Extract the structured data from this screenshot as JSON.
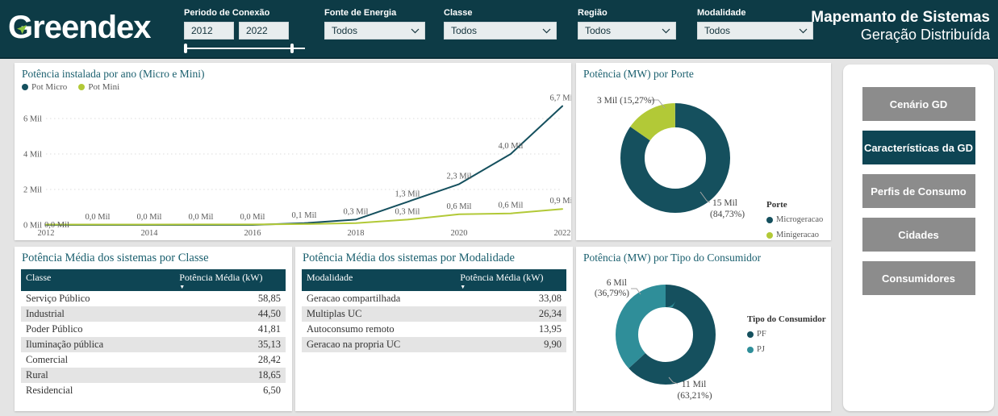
{
  "header": {
    "logo": "Greendex",
    "title_line1": "Mapemanto de Sistemas",
    "title_line2": "Geração Distribuída",
    "filters": {
      "periodo": {
        "label": "Periodo de Conexão",
        "from": "2012",
        "to": "2022"
      },
      "dropdowns": [
        {
          "label": "Fonte de Energia",
          "value": "Todos"
        },
        {
          "label": "Classe",
          "value": "Todos"
        },
        {
          "label": "Região",
          "value": "Todos"
        },
        {
          "label": "Modalidade",
          "value": "Todos"
        }
      ]
    }
  },
  "sidebar": {
    "buttons": [
      {
        "label": "Cenário GD",
        "active": false
      },
      {
        "label": "Características da GD",
        "active": true
      },
      {
        "label": "Perfis de Consumo",
        "active": false
      },
      {
        "label": "Cidades",
        "active": false
      },
      {
        "label": "Consumidores",
        "active": false
      }
    ]
  },
  "colors": {
    "brand_dark_teal": "#0d3b46",
    "brand_green": "#8bc53f",
    "series_dark": "#15505e",
    "series_green": "#b2c937",
    "series_teal": "#2f8e99"
  },
  "chart_data": [
    {
      "type": "line",
      "title": "Potência instalada por ano (Micro e Mini)",
      "x": [
        2012,
        2013,
        2014,
        2015,
        2016,
        2017,
        2018,
        2019,
        2020,
        2021,
        2022
      ],
      "x_ticks": [
        2012,
        2014,
        2016,
        2018,
        2020,
        2022
      ],
      "y_ticks": [
        {
          "label": "0 Mil",
          "value": 0
        },
        {
          "label": "2 Mil",
          "value": 2
        },
        {
          "label": "4 Mil",
          "value": 4
        },
        {
          "label": "6 Mil",
          "value": 6
        }
      ],
      "ylim": [
        0,
        7
      ],
      "grid": true,
      "legend_position": "top-left",
      "series": [
        {
          "name": "Pot Micro",
          "color": "#15505e",
          "values": [
            0.0,
            0.0,
            0.0,
            0.0,
            0.0,
            0.1,
            0.3,
            1.3,
            2.3,
            4.0,
            6.7
          ],
          "labels": [
            "0,0 Mil",
            "0,0 Mil",
            "0,0 Mil",
            "0,0 Mil",
            "0,0 Mil",
            "0,1 Mil",
            "0,3 Mil",
            "1,3 Mil",
            "2,3 Mil",
            "4,0 Mil",
            "6,7 Mil"
          ]
        },
        {
          "name": "Pot Mini",
          "color": "#b2c937",
          "values": [
            0.02,
            0.02,
            0.02,
            0.03,
            0.03,
            0.05,
            0.1,
            0.3,
            0.6,
            0.65,
            0.9
          ],
          "labels": [
            null,
            null,
            null,
            null,
            null,
            null,
            null,
            "0,3 Mil",
            "0,6 Mil",
            "0,6 Mil",
            "0,9 Mil"
          ]
        }
      ]
    },
    {
      "type": "pie",
      "title": "Potência (MW) por Porte",
      "legend_title": "Porte",
      "slices": [
        {
          "name": "Microgeracao",
          "value_label": "15 Mil",
          "pct": 84.73,
          "pct_label": "(84,73%)",
          "color": "#15505e"
        },
        {
          "name": "Minigeracao",
          "value_label": "3 Mil",
          "pct": 15.27,
          "pct_label": "(15,27%)",
          "color": "#b2c937"
        }
      ]
    },
    {
      "type": "pie",
      "title": "Potência (MW) por Tipo do Consumidor",
      "legend_title": "Tipo do Consumidor",
      "slices": [
        {
          "name": "PF",
          "value_label": "11 Mil",
          "pct": 63.21,
          "pct_label": "(63,21%)",
          "color": "#15505e"
        },
        {
          "name": "PJ",
          "value_label": "6 Mil",
          "pct": 36.79,
          "pct_label": "(36,79%)",
          "color": "#2f8e99"
        }
      ]
    }
  ],
  "tables": [
    {
      "title": "Potência Média dos sistemas por Classe",
      "columns": [
        "Classe",
        "Potência Média (kW)"
      ],
      "rows": [
        [
          "Serviço Público",
          "58,85"
        ],
        [
          "Industrial",
          "44,50"
        ],
        [
          "Poder Público",
          "41,81"
        ],
        [
          "Iluminação pública",
          "35,13"
        ],
        [
          "Comercial",
          "28,42"
        ],
        [
          "Rural",
          "18,65"
        ],
        [
          "Residencial",
          "6,50"
        ]
      ]
    },
    {
      "title": "Potência Média dos sistemas por Modalidade",
      "columns": [
        "Modalidade",
        "Potência Média (kW)"
      ],
      "rows": [
        [
          "Geracao compartilhada",
          "33,08"
        ],
        [
          "Multiplas UC",
          "26,34"
        ],
        [
          "Autoconsumo remoto",
          "13,95"
        ],
        [
          "Geracao na propria UC",
          "9,90"
        ]
      ]
    }
  ]
}
